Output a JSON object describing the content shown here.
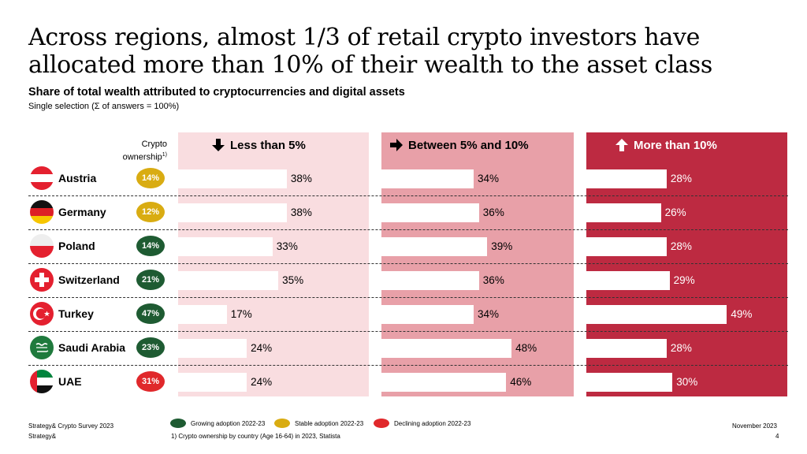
{
  "title": "Across regions, almost 1/3 of retail crypto investors have allocated more than 10% of their wealth to the asset class",
  "subtitle": "Share of total wealth attributed to cryptocurrencies and digital assets",
  "note": "Single selection (Σ of answers = 100%)",
  "ownership_label": "Crypto ownership",
  "ownership_sup": "1)",
  "colors": {
    "panel_low": "#f9dde0",
    "panel_mid": "#e8a0a8",
    "panel_high": "#bd2a41",
    "growing": "#1e5b32",
    "stable": "#d9ac12",
    "declining": "#e0282b"
  },
  "chart_data": {
    "type": "bar",
    "categories": [
      "Austria",
      "Germany",
      "Poland",
      "Switzerland",
      "Turkey",
      "Saudi Arabia",
      "UAE"
    ],
    "series": [
      {
        "name": "Less than 5%",
        "icon": "arrow-down-icon",
        "values": [
          38,
          38,
          33,
          35,
          17,
          24,
          24
        ]
      },
      {
        "name": "Between 5% and 10%",
        "icon": "arrow-right-icon",
        "values": [
          34,
          36,
          39,
          36,
          34,
          48,
          46
        ]
      },
      {
        "name": "More than 10%",
        "icon": "arrow-up-icon",
        "values": [
          28,
          26,
          28,
          29,
          49,
          28,
          30
        ]
      }
    ],
    "value_suffix": "%",
    "crypto_ownership": [
      "14%",
      "12%",
      "14%",
      "21%",
      "47%",
      "23%",
      "31%"
    ],
    "adoption_trend": [
      "stable",
      "stable",
      "growing",
      "growing",
      "growing",
      "growing",
      "declining"
    ],
    "flags": [
      "austria-flag-icon",
      "germany-flag-icon",
      "poland-flag-icon",
      "switzerland-flag-icon",
      "turkey-flag-icon",
      "saudi-arabia-flag-icon",
      "uae-flag-icon"
    ]
  },
  "legend": [
    {
      "key": "growing",
      "label": "Growing adoption 2022-23"
    },
    {
      "key": "stable",
      "label": "Stable adoption 2022-23"
    },
    {
      "key": "declining",
      "label": "Declining adoption 2022-23"
    }
  ],
  "footer": {
    "source": "Strategy& Crypto Survey 2023",
    "brand": "Strategy&",
    "footnote": "1) Crypto ownership by country (Age 16-64) in 2023, Statista",
    "date": "November 2023",
    "page": "4"
  }
}
